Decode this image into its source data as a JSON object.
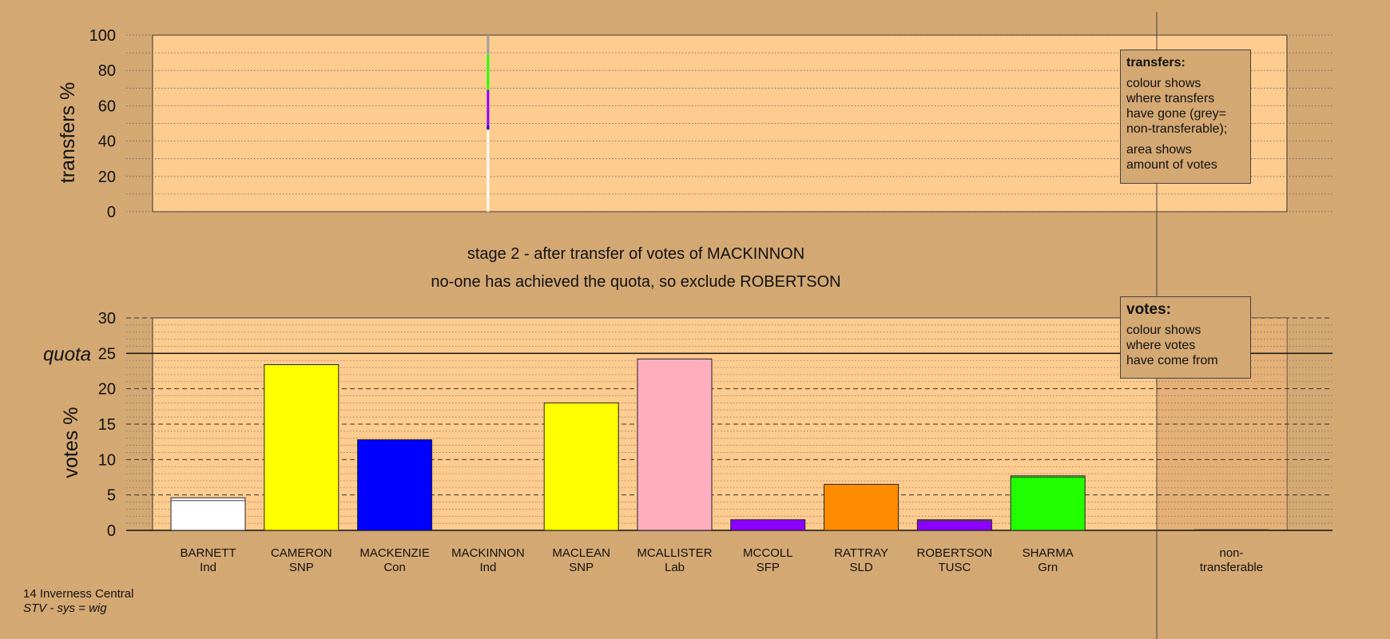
{
  "colors": {
    "background": "#d4a873",
    "plot_area": "#ffcc8f",
    "side_area": "#d9a46a",
    "axis": "#222222"
  },
  "stage_title": "stage 2 - after transfer of votes of MACKINNON",
  "stage_subtitle": "no-one has achieved the quota, so exclude ROBERTSON",
  "legend_transfers": {
    "title": "transfers:",
    "lines1": [
      "colour shows",
      "where transfers",
      "have gone (grey=",
      "non-transferable);"
    ],
    "lines2": [
      "area shows",
      "amount of votes"
    ]
  },
  "legend_votes": {
    "title": "votes:",
    "lines": [
      "colour shows",
      "where votes",
      "have come from"
    ]
  },
  "footer": {
    "constituency": "14 Inverness Central",
    "system": "STV - sys = wig"
  },
  "chart_data": [
    {
      "type": "bar",
      "title": "",
      "ylabel": "transfers %",
      "ylim": [
        0,
        100
      ],
      "yticks": [
        0,
        20,
        40,
        60,
        80,
        100
      ],
      "grid": true,
      "transfer_column": "MACKINNON",
      "segments": [
        {
          "to": "BARNETT",
          "from": 0,
          "to_pct": 46,
          "color": "#ffffff"
        },
        {
          "to": "CAMERON",
          "from": 46,
          "to_pct": 46.5,
          "color": "#ffff00"
        },
        {
          "to": "MACKENZIE",
          "from": 46.5,
          "to_pct": 49,
          "color": "#0000ff"
        },
        {
          "to": "ROBERTSON",
          "from": 49,
          "to_pct": 69,
          "color": "#8b00ff"
        },
        {
          "to": "SHARMA",
          "from": 69,
          "to_pct": 89,
          "color": "#22ff00"
        },
        {
          "to": "non-transferable",
          "from": 89,
          "to_pct": 100,
          "color": "#a0a0a0"
        }
      ]
    },
    {
      "type": "bar",
      "title": "",
      "ylabel": "votes %",
      "quota_label": "quota",
      "quota": 25,
      "ylim": [
        0,
        30
      ],
      "yticks": [
        0,
        5,
        10,
        15,
        20,
        25,
        30
      ],
      "grid": true,
      "categories": [
        {
          "name": "BARNETT",
          "party": "Ind",
          "value": 4.6,
          "color": "#ffffff",
          "transfer_gain": 0.4
        },
        {
          "name": "CAMERON",
          "party": "SNP",
          "value": 23.4,
          "color": "#ffff00",
          "transfer_gain": 0
        },
        {
          "name": "MACKENZIE",
          "party": "Con",
          "value": 12.8,
          "color": "#0000ff",
          "transfer_gain": 0
        },
        {
          "name": "MACKINNON",
          "party": "Ind",
          "value": 0,
          "color": "#ffffff",
          "transfer_gain": 0
        },
        {
          "name": "MACLEAN",
          "party": "SNP",
          "value": 18.0,
          "color": "#ffff00",
          "transfer_gain": 0
        },
        {
          "name": "MCALLISTER",
          "party": "Lab",
          "value": 24.2,
          "color": "#ffaec0",
          "transfer_gain": 0
        },
        {
          "name": "MCCOLL",
          "party": "SFP",
          "value": 1.5,
          "color": "#8b00ff",
          "transfer_gain": 0
        },
        {
          "name": "RATTRAY",
          "party": "SLD",
          "value": 6.5,
          "color": "#ff8c00",
          "transfer_gain": 0
        },
        {
          "name": "ROBERTSON",
          "party": "TUSC",
          "value": 1.5,
          "color": "#8b00ff",
          "transfer_gain": 0.2
        },
        {
          "name": "SHARMA",
          "party": "Grn",
          "value": 7.7,
          "color": "#22ff00",
          "transfer_gain": 0.2
        }
      ],
      "nontransferable": {
        "name": "non-",
        "name2": "transferable",
        "value": 0.1,
        "color": "#a0a0a0"
      }
    }
  ]
}
